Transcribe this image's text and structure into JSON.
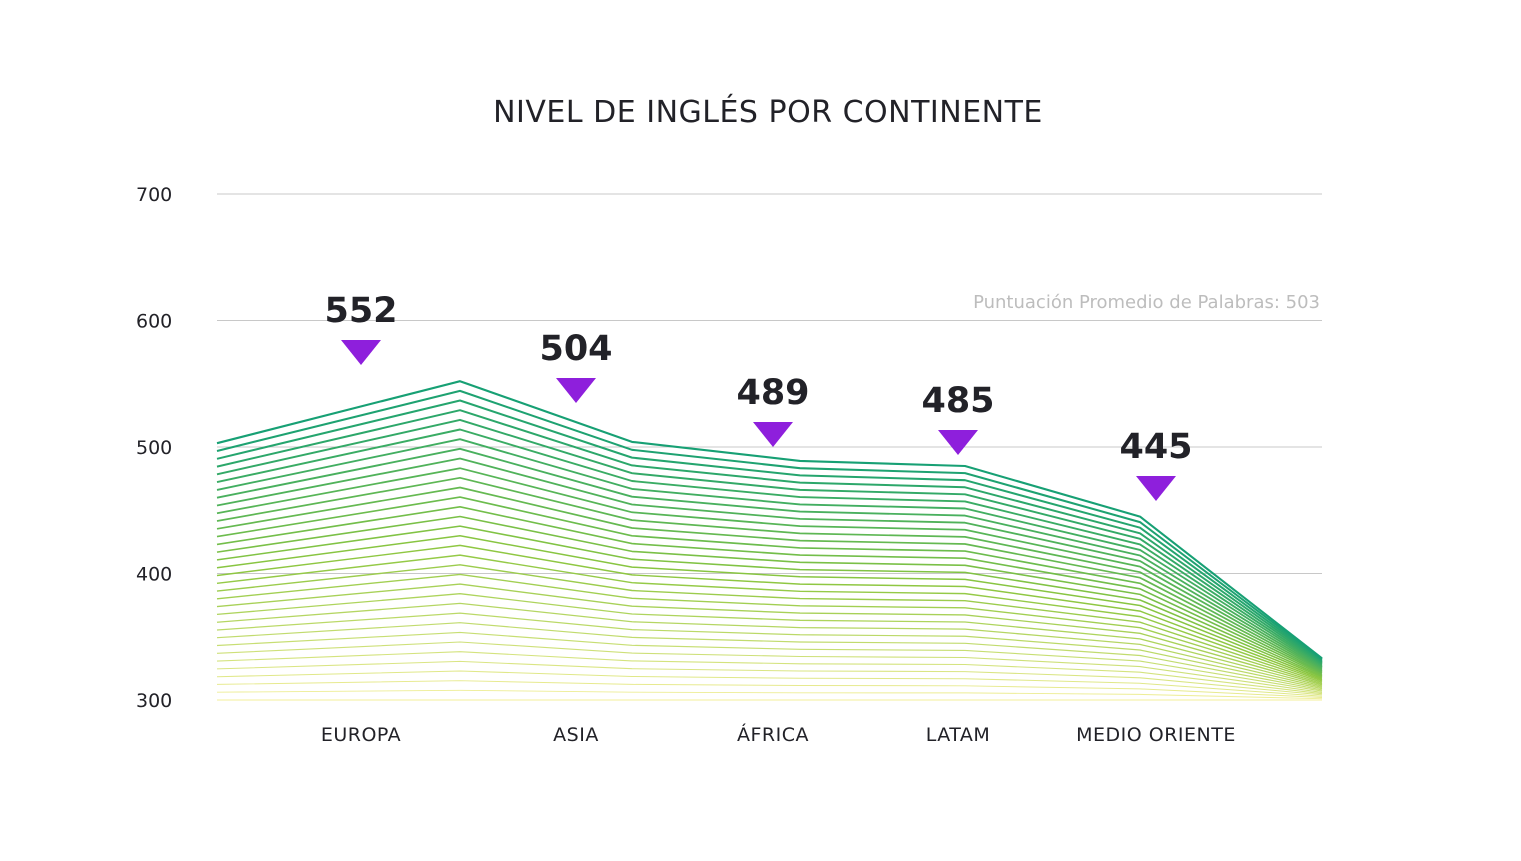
{
  "chart_data": {
    "type": "line",
    "title": "NIVEL DE INGLÉS POR CONTINENTE",
    "xlabel": "",
    "ylabel": "",
    "ylim": [
      300,
      700
    ],
    "yticks": [
      "700",
      "600",
      "500",
      "400",
      "300"
    ],
    "ytick_values": [
      700,
      600,
      500,
      400,
      300
    ],
    "grid": true,
    "categories": [
      "EUROPA",
      "ASIA",
      "ÁFRICA",
      "LATAM",
      "MEDIO ORIENTE"
    ],
    "values": [
      552,
      504,
      489,
      485,
      445
    ],
    "value_labels": [
      "552",
      "504",
      "489",
      "485",
      "445"
    ],
    "line_profile_values": [
      503,
      552,
      504,
      489,
      485,
      445,
      333
    ],
    "line_copies": 33,
    "annotation": "Puntuación Promedio de Palabras: 503",
    "colors": {
      "top": "#17a074",
      "mid": "#8cc63f",
      "bottom": "#f3ef9a",
      "marker": "#8e1fdc",
      "grid": "#c8c8c8"
    }
  }
}
